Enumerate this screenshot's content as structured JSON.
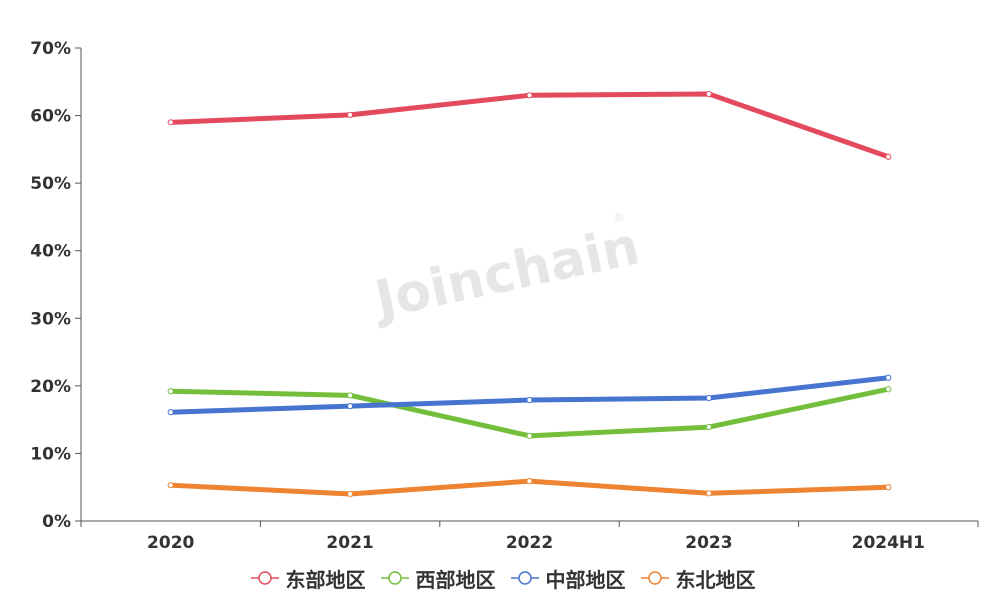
{
  "chart_data": {
    "type": "line",
    "title": "",
    "xlabel": "",
    "ylabel": "",
    "categories": [
      "2020",
      "2021",
      "2022",
      "2023",
      "2024H1"
    ],
    "ylim": [
      0,
      70
    ],
    "yticks": [
      "0%",
      "10%",
      "20%",
      "30%",
      "40%",
      "50%",
      "60%",
      "70%"
    ],
    "grid": false,
    "legend_position": "bottom",
    "series": [
      {
        "name": "东部地区",
        "color": "#e44a5e",
        "values": [
          59.0,
          60.1,
          63.0,
          63.2,
          53.9
        ]
      },
      {
        "name": "西部地区",
        "color": "#73bf3c",
        "values": [
          19.2,
          18.6,
          12.6,
          13.9,
          19.5
        ]
      },
      {
        "name": "中部地区",
        "color": "#4674cf",
        "values": [
          16.1,
          17.0,
          17.9,
          18.2,
          21.2
        ]
      },
      {
        "name": "东北地区",
        "color": "#ee8432",
        "values": [
          5.3,
          4.0,
          5.9,
          4.1,
          5.0
        ]
      }
    ]
  },
  "watermark": {
    "text": "Joinchain",
    "mark": "®"
  }
}
